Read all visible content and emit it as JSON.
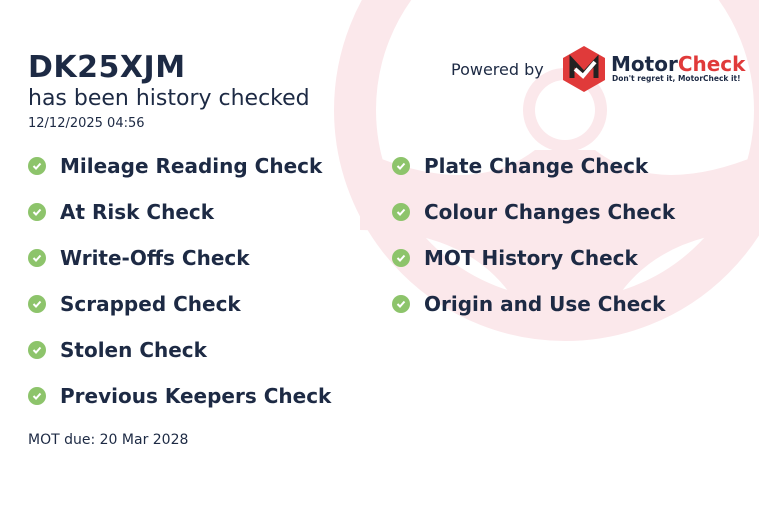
{
  "header": {
    "plate": "DK25XJM",
    "subtitle": "has been history checked",
    "date": "12/12/2025 04:56"
  },
  "brand": {
    "powered_by": "Powered by",
    "name_part1": "Motor",
    "name_part2": "Check",
    "tagline": "Don't regret it, MotorCheck it!",
    "accent": "#e03a3a"
  },
  "checks_left": [
    "Mileage Reading Check",
    "At Risk Check",
    "Write-Offs Check",
    "Scrapped Check",
    "Stolen Check",
    "Previous Keepers Check"
  ],
  "checks_right": [
    "Plate Change Check",
    "Colour Changes Check",
    "MOT History Check",
    "Origin and Use Check"
  ],
  "check_icon": "check-circle-icon",
  "check_color": "#8dc46b",
  "footer": {
    "mot_due": "MOT due: 20 Mar 2028"
  }
}
